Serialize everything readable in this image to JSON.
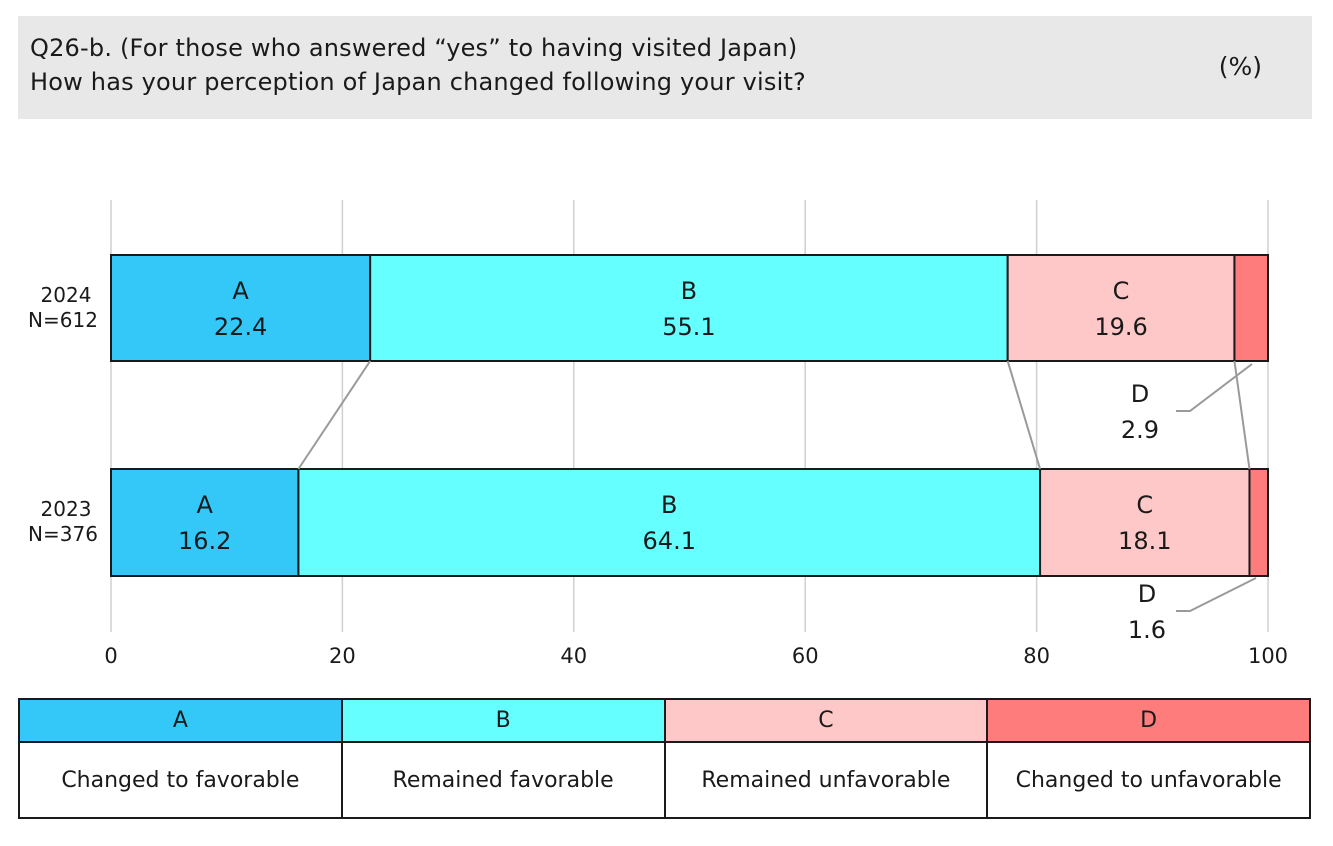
{
  "header": {
    "line1": "Q26-b. (For those who answered “yes” to having visited Japan)",
    "line2": "How has your perception of Japan changed following your visit?",
    "unit": "(%)"
  },
  "legend": [
    {
      "key": "A",
      "label": "Changed to favorable",
      "color": "#33c8f8"
    },
    {
      "key": "B",
      "label": "Remained favorable",
      "color": "#66ffff"
    },
    {
      "key": "C",
      "label": "Remained unfavorable",
      "color": "#ffc8c8"
    },
    {
      "key": "D",
      "label": "Changed to unfavorable",
      "color": "#ff7c7c"
    }
  ],
  "chart_data": {
    "type": "bar",
    "orientation": "horizontal",
    "stacked": true,
    "categories": [
      {
        "year": "2024",
        "n": "N=612"
      },
      {
        "year": "2023",
        "n": "N=376"
      }
    ],
    "series": [
      {
        "name": "A",
        "color": "#33c8f8",
        "values": [
          22.4,
          16.2
        ]
      },
      {
        "name": "B",
        "color": "#66ffff",
        "values": [
          55.1,
          64.1
        ]
      },
      {
        "name": "C",
        "color": "#ffc8c8",
        "values": [
          19.6,
          18.1
        ]
      },
      {
        "name": "D",
        "color": "#ff7c7c",
        "values": [
          2.9,
          1.6
        ]
      }
    ],
    "xlim": [
      0,
      100
    ],
    "xticks": [
      "0",
      "20",
      "40",
      "60",
      "80",
      "100"
    ],
    "grid": true,
    "connector_lines": true
  }
}
